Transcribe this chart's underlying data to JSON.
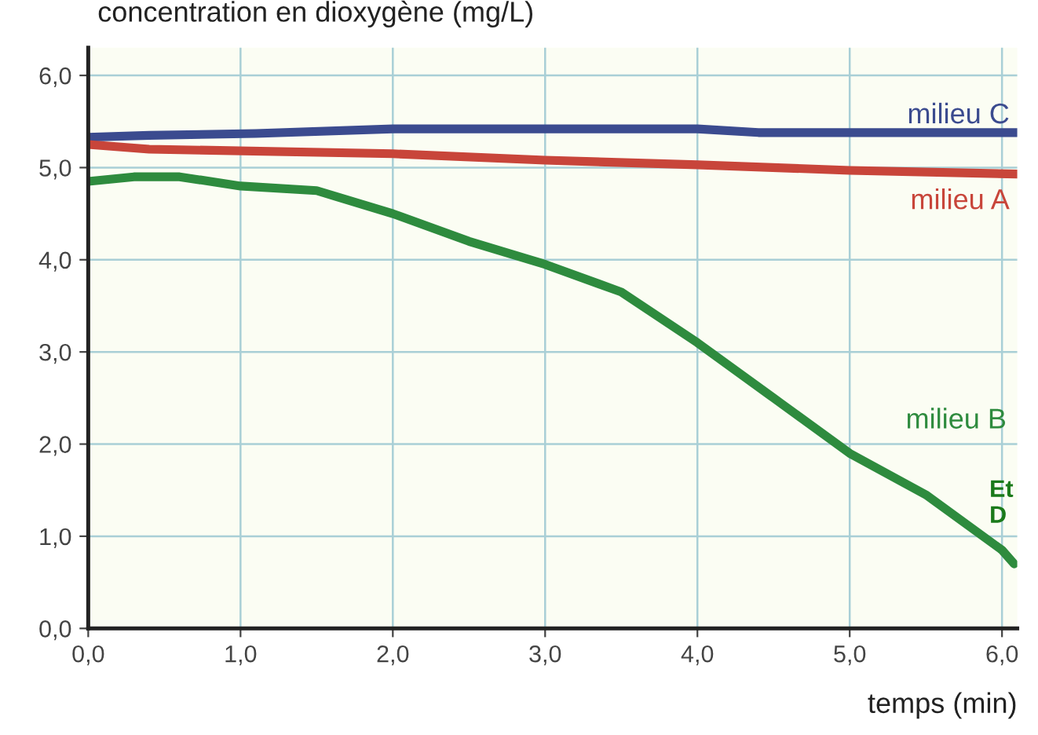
{
  "chart_data": {
    "type": "line",
    "xlabel": "temps (min)",
    "ylabel": "concentration en dioxygène (mg/L)",
    "xlim": [
      0,
      6.1
    ],
    "ylim": [
      0,
      6.3
    ],
    "xticks": [
      {
        "value": 0,
        "label": "0,0"
      },
      {
        "value": 1,
        "label": "1,0"
      },
      {
        "value": 2,
        "label": "2,0"
      },
      {
        "value": 3,
        "label": "3,0"
      },
      {
        "value": 4,
        "label": "4,0"
      },
      {
        "value": 5,
        "label": "5,0"
      },
      {
        "value": 6,
        "label": "6,0"
      }
    ],
    "yticks": [
      {
        "value": 0,
        "label": "0,0"
      },
      {
        "value": 1,
        "label": "1,0"
      },
      {
        "value": 2,
        "label": "2,0"
      },
      {
        "value": 3,
        "label": "3,0"
      },
      {
        "value": 4,
        "label": "4,0"
      },
      {
        "value": 5,
        "label": "5,0"
      },
      {
        "value": 6,
        "label": "6,0"
      }
    ],
    "grid": true,
    "legend": false,
    "marker": "none",
    "line_style": "solid",
    "series": [
      {
        "name": "milieu C",
        "color": "#3b4b8f",
        "x": [
          0,
          0.4,
          1.1,
          2.0,
          4.0,
          4.4,
          6.1
        ],
        "values": [
          5.33,
          5.35,
          5.37,
          5.42,
          5.42,
          5.38,
          5.38
        ]
      },
      {
        "name": "milieu A",
        "color": "#c8453a",
        "x": [
          0,
          0.4,
          2.0,
          3.0,
          4.0,
          5.0,
          6.1
        ],
        "values": [
          5.25,
          5.2,
          5.15,
          5.08,
          5.03,
          4.97,
          4.93
        ]
      },
      {
        "name": "milieu B",
        "color": "#2e8b3e",
        "x": [
          0,
          0.3,
          0.6,
          1.0,
          1.5,
          2.0,
          2.5,
          3.0,
          3.5,
          4.0,
          4.5,
          5.0,
          5.5,
          6.0,
          6.08
        ],
        "values": [
          4.85,
          4.9,
          4.9,
          4.8,
          4.75,
          4.5,
          4.2,
          3.95,
          3.65,
          3.1,
          2.5,
          1.9,
          1.45,
          0.85,
          0.7
        ]
      }
    ],
    "annotations": [
      "Et\nD"
    ]
  }
}
